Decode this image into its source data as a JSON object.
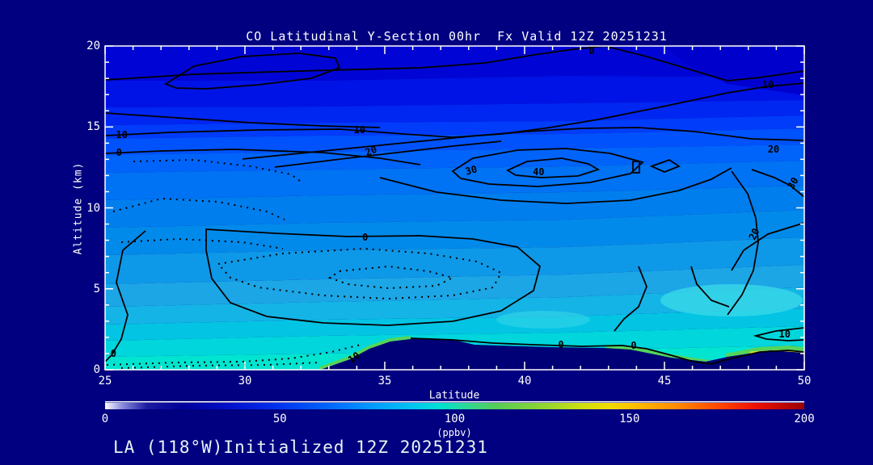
{
  "title": "CO Latitudinal Y-Section 00hr  Fx Valid 12Z 20251231",
  "footer": "LA (118°W)Initialized 12Z 20251231",
  "axes": {
    "x": {
      "label": "Latitude",
      "range": [
        25,
        50
      ],
      "ticks": [
        "25",
        "30",
        "35",
        "40",
        "45",
        "50"
      ],
      "minor_step": 1
    },
    "y": {
      "label": "Altitude (km)",
      "range": [
        0,
        20
      ],
      "ticks": [
        "0",
        "5",
        "10",
        "15",
        "20"
      ],
      "minor_step": 1
    }
  },
  "colorbar": {
    "range": [
      0,
      200
    ],
    "ticks": [
      "0",
      "50",
      "100",
      "150",
      "200"
    ],
    "unit": "(ppbv)",
    "gradient": [
      "#FFFFFF",
      "#000099",
      "#0033EE",
      "#0099FF",
      "#00E0D0",
      "#55CC55",
      "#CCDD11",
      "#FFBB00",
      "#FF4400",
      "#990000"
    ]
  },
  "contour_labels": [
    {
      "value": "10",
      "lat": 25.6,
      "alt": 14.5,
      "rot": 0
    },
    {
      "value": "0",
      "lat": 25.5,
      "alt": 13.4,
      "rot": 0
    },
    {
      "value": "10",
      "lat": 34.1,
      "alt": 14.8,
      "rot": 0
    },
    {
      "value": "20",
      "lat": 34.5,
      "alt": 13.5,
      "rot": -20
    },
    {
      "value": "30",
      "lat": 38.1,
      "alt": 12.3,
      "rot": -15
    },
    {
      "value": "40",
      "lat": 40.5,
      "alt": 12.2,
      "rot": 0
    },
    {
      "value": "0",
      "lat": 42.4,
      "alt": 19.7,
      "rot": 0
    },
    {
      "value": "10",
      "lat": 48.7,
      "alt": 17.6,
      "rot": 0
    },
    {
      "value": "20",
      "lat": 48.9,
      "alt": 13.6,
      "rot": 0
    },
    {
      "value": "30",
      "lat": 49.6,
      "alt": 11.5,
      "rot": -60
    },
    {
      "value": "20",
      "lat": 48.2,
      "alt": 8.4,
      "rot": -65
    },
    {
      "value": "0",
      "lat": 34.3,
      "alt": 8.2,
      "rot": 0
    },
    {
      "value": "0",
      "lat": 25.3,
      "alt": 1.0,
      "rot": 0
    },
    {
      "value": "10",
      "lat": 33.9,
      "alt": 0.75,
      "rot": -35
    },
    {
      "value": "0",
      "lat": 41.3,
      "alt": 1.55,
      "rot": 0
    },
    {
      "value": "0",
      "lat": 43.9,
      "alt": 1.5,
      "rot": 0
    },
    {
      "value": "10",
      "lat": 49.3,
      "alt": 2.2,
      "rot": 0
    }
  ],
  "palette": {
    "background": "#000080",
    "frame": "#FFFFFF",
    "contour_line": "#000000",
    "terrain": "#000076",
    "patch_dark": "#0000CC",
    "patch_cyan": "#38D8E8",
    "green_strip": "#55D45C",
    "yellow_strip": "#E6E632",
    "bands": [
      "#0005D6",
      "#0013E6",
      "#0026F2",
      "#003CFA",
      "#0052FC",
      "#0064FA",
      "#0072F4",
      "#007EEE",
      "#028AEA",
      "#0E98E8",
      "#1CA6E6",
      "#14B4E6",
      "#04C4E4",
      "#00D6DC",
      "#00E4D0"
    ]
  },
  "chart_data": {
    "type": "heatmap",
    "subtype": "filled-contour-cross-section",
    "title": "CO Latitudinal Y-Section 00hr  Fx Valid 12Z 20251231",
    "xlabel": "Latitude",
    "ylabel": "Altitude (km)",
    "xlim": [
      25,
      50
    ],
    "ylim": [
      0,
      20
    ],
    "x_ticks": [
      25,
      30,
      35,
      40,
      45,
      50
    ],
    "y_ticks": [
      0,
      5,
      10,
      15,
      20
    ],
    "colorbar": {
      "label": "(ppbv)",
      "range": [
        0,
        200
      ],
      "ticks": [
        0,
        50,
        100,
        150,
        200
      ]
    },
    "line_contour_levels": [
      0,
      10,
      20,
      30,
      40
    ],
    "negative_contours_style": "dotted",
    "contour_max": {
      "value": 40,
      "lat": 40.5,
      "altitude_km": 12.3
    },
    "fill_field_estimate_ppbv": {
      "latitudes": [
        25,
        30,
        35,
        40,
        45,
        50
      ],
      "altitudes_km": [
        20,
        15,
        10,
        5,
        1
      ],
      "values": [
        [
          15,
          15,
          15,
          18,
          20,
          22
        ],
        [
          35,
          36,
          38,
          40,
          40,
          42
        ],
        [
          50,
          52,
          55,
          55,
          55,
          60
        ],
        [
          65,
          70,
          70,
          72,
          72,
          78
        ],
        [
          85,
          95,
          110,
          95,
          115,
          125
        ]
      ]
    },
    "terrain_surface_km": [
      [
        25,
        0
      ],
      [
        32.8,
        0
      ],
      [
        34,
        0.7
      ],
      [
        35.5,
        1.9
      ],
      [
        36.5,
        1.9
      ],
      [
        38,
        1.5
      ],
      [
        40,
        1.4
      ],
      [
        42,
        1.3
      ],
      [
        43.5,
        0.9
      ],
      [
        46.5,
        0.55
      ],
      [
        48,
        1.2
      ],
      [
        49,
        1.15
      ],
      [
        50,
        1.05
      ]
    ],
    "legend_position": "bottom",
    "grid": false
  }
}
